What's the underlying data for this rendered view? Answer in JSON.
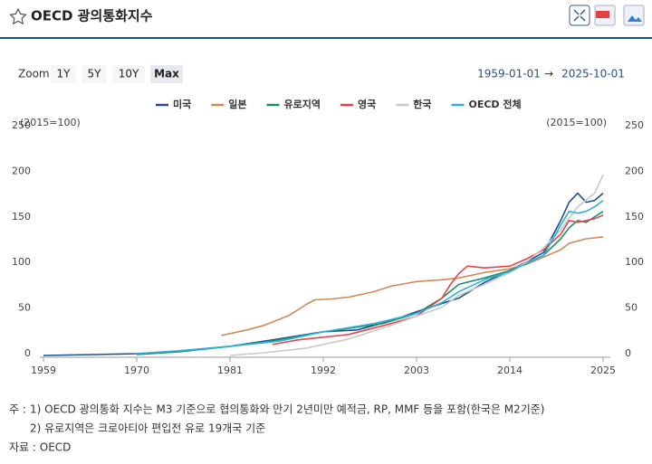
{
  "header": {
    "title": "OECD 광의통화지수"
  },
  "zoom": {
    "label": "Zoom",
    "options": [
      "1Y",
      "5Y",
      "10Y",
      "Max"
    ],
    "selected_index": 3
  },
  "range": {
    "start": "1959-01-01",
    "separator": "→",
    "end": "2025-10-01"
  },
  "chart_data": {
    "type": "line",
    "y_label": "(2015=100)",
    "y2_label": "(2015=100)",
    "xlim": [
      1959,
      2025
    ],
    "xticks": [
      1959,
      1970,
      1981,
      1992,
      2003,
      2014,
      2025
    ],
    "ylim": [
      0,
      250
    ],
    "yticks": [
      0,
      50,
      100,
      150,
      200,
      250
    ],
    "y2lim": [
      0,
      250
    ],
    "y2ticks": [
      0,
      50,
      100,
      150,
      200,
      250
    ],
    "grid": false,
    "series": [
      {
        "name": "미국",
        "color": "#1f4e8c",
        "x": [
          1959,
          1965,
          1970,
          1975,
          1981,
          1986,
          1992,
          1996,
          2000,
          2003,
          2008,
          2011,
          2014,
          2018,
          2020,
          2021,
          2022,
          2023,
          2024,
          2025
        ],
        "values": [
          2,
          3,
          4,
          7,
          12,
          19,
          28,
          30,
          40,
          50,
          65,
          82,
          95,
          115,
          150,
          170,
          180,
          170,
          172,
          180
        ]
      },
      {
        "name": "일본",
        "color": "#d0895a",
        "x": [
          1980,
          1983,
          1985,
          1988,
          1990,
          1991,
          1993,
          1995,
          1998,
          2000,
          2003,
          2006,
          2008,
          2011,
          2014,
          2016,
          2018,
          2020,
          2021,
          2023,
          2025
        ],
        "values": [
          24,
          30,
          35,
          46,
          58,
          63,
          64,
          66,
          72,
          78,
          83,
          85,
          87,
          93,
          97,
          102,
          110,
          118,
          125,
          130,
          132
        ]
      },
      {
        "name": "유로지역",
        "color": "#1b9070",
        "x": [
          1970,
          1975,
          1981,
          1986,
          1992,
          1996,
          1999,
          2003,
          2006,
          2008,
          2011,
          2014,
          2018,
          2020,
          2021,
          2022,
          2023,
          2025
        ],
        "values": [
          3,
          6,
          12,
          18,
          28,
          33,
          37,
          48,
          65,
          80,
          87,
          95,
          112,
          130,
          142,
          150,
          148,
          160
        ]
      },
      {
        "name": "영국",
        "color": "#e0464a",
        "x": [
          1986,
          1989,
          1992,
          1995,
          2000,
          2003,
          2006,
          2007,
          2008,
          2009,
          2011,
          2014,
          2016,
          2018,
          2020,
          2021,
          2022,
          2023,
          2024,
          2025
        ],
        "values": [
          14,
          19,
          22,
          25,
          37,
          45,
          65,
          80,
          92,
          100,
          98,
          100,
          108,
          118,
          135,
          150,
          148,
          150,
          152,
          156
        ]
      },
      {
        "name": "한국",
        "color": "#c8c8c8",
        "x": [
          1981,
          1985,
          1990,
          1995,
          2000,
          2003,
          2006,
          2008,
          2011,
          2014,
          2016,
          2018,
          2020,
          2022,
          2024,
          2025
        ],
        "values": [
          2,
          5,
          10,
          20,
          35,
          45,
          55,
          68,
          80,
          93,
          105,
          120,
          140,
          165,
          180,
          200
        ]
      },
      {
        "name": "OECD 전체",
        "color": "#2fb0d8",
        "x": [
          1970,
          1975,
          1981,
          1987,
          1992,
          1998,
          2003,
          2006,
          2008,
          2011,
          2014,
          2018,
          2020,
          2021,
          2022,
          2023,
          2024,
          2025
        ],
        "values": [
          4,
          7,
          12,
          18,
          28,
          37,
          48,
          60,
          72,
          85,
          94,
          112,
          145,
          160,
          158,
          160,
          165,
          172
        ]
      }
    ]
  },
  "notes": {
    "prefix": "주 :",
    "lines": [
      "1) OECD 광의통화 지수는 M3 기준으로 협의통화와 만기 2년미만 예적금, RP, MMF 등을 포함(한국은 M2기준)",
      "2) 유로지역은 크로아티아 편입전 유로 19개국 기준"
    ]
  },
  "source": "자료 : OECD"
}
